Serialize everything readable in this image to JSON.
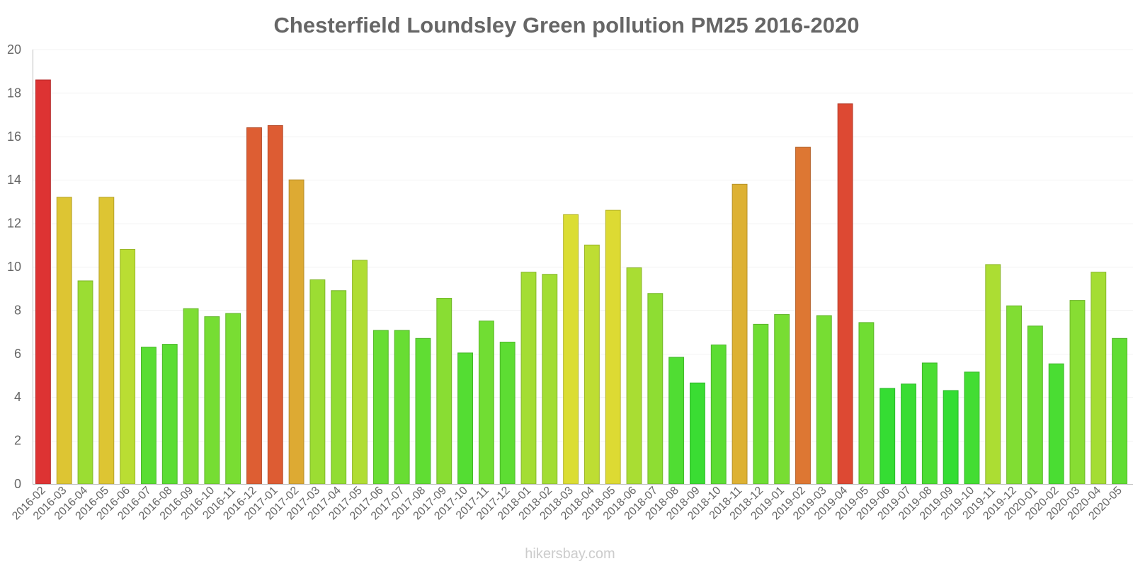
{
  "chart_data": {
    "type": "bar",
    "title": "Chesterfield Loundsley Green pollution PM25 2016-2020",
    "xlabel": "",
    "ylabel": "",
    "ylim": [
      0,
      20
    ],
    "yticks": [
      0,
      2,
      4,
      6,
      8,
      10,
      12,
      14,
      16,
      18,
      20
    ],
    "categories": [
      "2016-02",
      "2016-03",
      "2016-04",
      "2016-05",
      "2016-06",
      "2016-07",
      "2016-08",
      "2016-09",
      "2016-10",
      "2016-11",
      "2016-12",
      "2017-01",
      "2017-02",
      "2017-03",
      "2017-04",
      "2017-05",
      "2017-06",
      "2017-07",
      "2017-08",
      "2017-09",
      "2017-10",
      "2017-11",
      "2017-12",
      "2018-01",
      "2018-02",
      "2018-03",
      "2018-04",
      "2018-05",
      "2018-06",
      "2018-07",
      "2018-08",
      "2018-09",
      "2018-10",
      "2018-11",
      "2018-12",
      "2019-01",
      "2019-02",
      "2019-03",
      "2019-04",
      "2019-05",
      "2019-06",
      "2019-07",
      "2019-08",
      "2019-09",
      "2019-10",
      "2019-11",
      "2019-12",
      "2020-01",
      "2020-02",
      "2020-03",
      "2020-04",
      "2020-05"
    ],
    "values": [
      18.6,
      13.2,
      9.35,
      13.2,
      10.8,
      6.3,
      6.43,
      8.07,
      7.7,
      7.85,
      16.4,
      16.5,
      14,
      9.4,
      8.9,
      10.3,
      7.07,
      7.07,
      6.7,
      8.55,
      6.03,
      7.5,
      6.53,
      9.75,
      9.65,
      12.4,
      11,
      12.6,
      9.95,
      8.77,
      5.83,
      4.65,
      6.4,
      13.8,
      7.35,
      7.8,
      15.5,
      7.75,
      17.5,
      7.43,
      4.4,
      4.6,
      5.57,
      4.3,
      5.15,
      10.1,
      8.2,
      7.27,
      5.53,
      8.45,
      9.75,
      6.7
    ],
    "colors": {
      "gradient": [
        "#33dd33",
        "#66dd33",
        "#aadd33",
        "#dddd33",
        "#ddaa33",
        "#dd6633",
        "#dd3333"
      ],
      "grid": "#f2f2f2",
      "axis": "#bbbbbb",
      "text": "#666666",
      "credit": "#cccccc"
    },
    "grid": true,
    "legend": "none"
  },
  "credit": "hikersbay.com"
}
